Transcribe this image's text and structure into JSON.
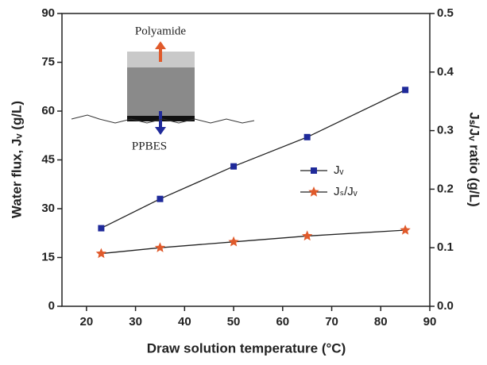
{
  "chart_data": {
    "type": "line",
    "xlabel": "Draw solution temperature (°C)",
    "ylabel": "Water flux, Jᵥ (g/L)",
    "y2label": "Jₛ/Jᵥ ratio (g/L)",
    "annotations": [
      "Polyamide",
      "PPBES"
    ],
    "x": [
      23,
      35,
      50,
      65,
      85
    ],
    "series": [
      {
        "name": "Jᵥ",
        "color": "#1f2a9a",
        "marker": "square",
        "values": [
          24,
          33,
          43,
          52,
          66.5
        ]
      },
      {
        "name": "Jₛ/Jᵥ",
        "color": "#e05a2b",
        "marker": "star",
        "axis": "y2",
        "values": [
          0.09,
          0.1,
          0.11,
          0.12,
          0.13
        ]
      }
    ],
    "xlim": [
      15,
      90
    ],
    "xticks": [
      20,
      30,
      40,
      50,
      60,
      70,
      80,
      90
    ],
    "ylim": [
      0,
      90
    ],
    "yticks": [
      0,
      15,
      30,
      45,
      60,
      75,
      90
    ],
    "y2lim": [
      0,
      0.5
    ],
    "y2ticks": [
      {
        "value": 0,
        "label": "0.0"
      },
      0.1,
      0.2,
      0.3,
      0.4,
      0.5
    ],
    "grid": false
  }
}
